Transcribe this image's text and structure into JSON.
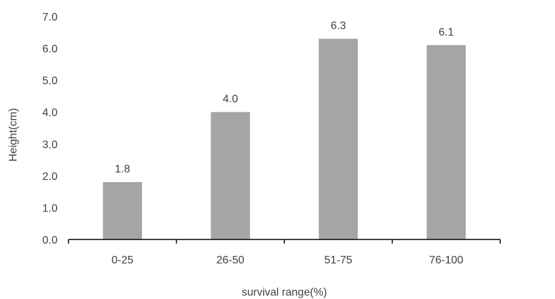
{
  "chart_data": {
    "type": "bar",
    "title": "",
    "categories": [
      "0-25",
      "26-50",
      "51-75",
      "76-100"
    ],
    "values": [
      1.8,
      4.0,
      6.3,
      6.1
    ],
    "value_labels": [
      "1.8",
      "4.0",
      "6.3",
      "6.1"
    ],
    "xlabel": "survival range(%)",
    "ylabel": "Height(cm)",
    "ylim": [
      0,
      7
    ],
    "yticks": [
      0,
      1,
      2,
      3,
      4,
      5,
      6,
      7
    ],
    "ytick_labels": [
      "0.0",
      "1.0",
      "2.0",
      "3.0",
      "4.0",
      "5.0",
      "6.0",
      "7.0"
    ],
    "grid": false,
    "legend": "none",
    "bar_color": "#a5a5a5",
    "axis_color": "#000000",
    "text_color": "#404040"
  }
}
